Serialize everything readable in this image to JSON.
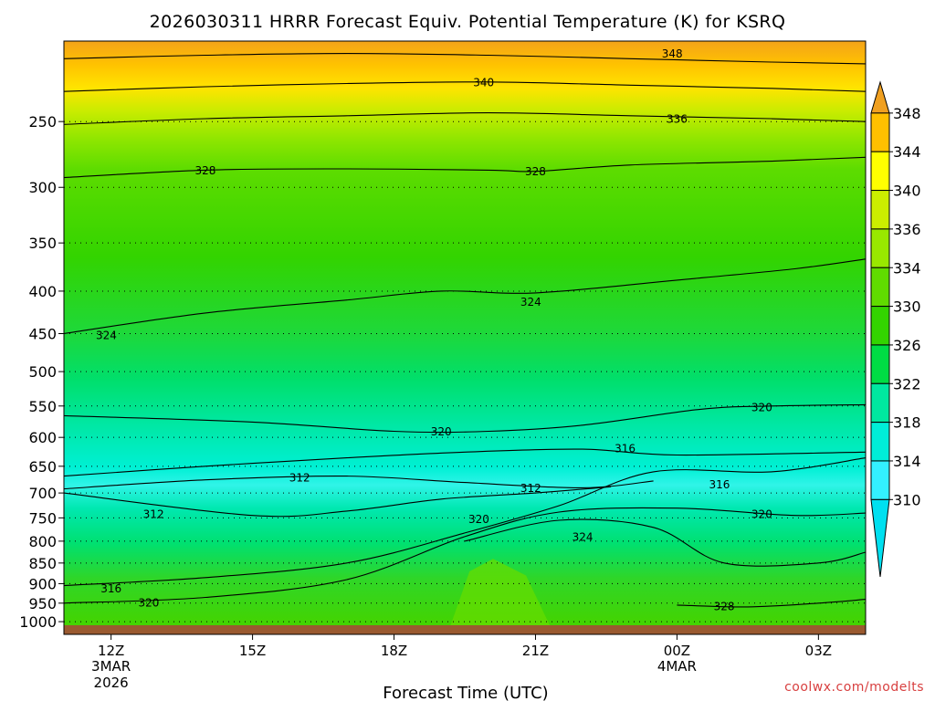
{
  "chart_data": {
    "type": "heatmap",
    "title": "2026030311 HRRR Forecast Equiv. Potential Temperature (K) for KSRQ",
    "xlabel": "Forecast Time (UTC)",
    "ylabel": "",
    "x_ticks": [
      {
        "label": "12Z",
        "sub": [
          "3MAR",
          "2026"
        ],
        "hour": 12
      },
      {
        "label": "15Z",
        "sub": [],
        "hour": 15
      },
      {
        "label": "18Z",
        "sub": [],
        "hour": 18
      },
      {
        "label": "21Z",
        "sub": [],
        "hour": 21
      },
      {
        "label": "00Z",
        "sub": [
          "4MAR"
        ],
        "hour": 24
      },
      {
        "label": "03Z",
        "sub": [],
        "hour": 27
      }
    ],
    "x_range": [
      11,
      28
    ],
    "y_ticks": [
      250,
      300,
      350,
      400,
      450,
      500,
      550,
      600,
      650,
      700,
      750,
      800,
      850,
      900,
      950,
      1000
    ],
    "y_range_hpa": [
      200,
      1010
    ],
    "y_scale": "log",
    "grid": "dotted horizontal lines at pressure ticks",
    "colorbar": {
      "ticks": [
        348,
        344,
        340,
        336,
        334,
        330,
        326,
        322,
        318,
        314,
        310
      ],
      "colors": [
        "#f0a020",
        "#ffc000",
        "#ffff00",
        "#ccee00",
        "#99e800",
        "#60dc00",
        "#33d400",
        "#00dd44",
        "#00e8a0",
        "#00eed8",
        "#33f0ff",
        "#00e0f0"
      ]
    },
    "series": [
      {
        "level": 312,
        "points": [
          [
            11.0,
            700
          ],
          [
            15.0,
            745
          ],
          [
            17.0,
            736
          ],
          [
            19.0,
            712
          ],
          [
            21.0,
            700
          ],
          [
            22.6,
            688
          ]
        ]
      },
      {
        "level": 312,
        "points": [
          [
            11.0,
            692
          ],
          [
            14.0,
            675
          ],
          [
            17.0,
            668
          ],
          [
            19.5,
            680
          ],
          [
            22.0,
            690
          ],
          [
            23.5,
            677
          ]
        ]
      },
      {
        "level": 316,
        "points": [
          [
            11.0,
            905
          ],
          [
            14.0,
            885
          ],
          [
            17.0,
            850
          ],
          [
            19.5,
            782
          ],
          [
            21.5,
            725
          ],
          [
            23.5,
            660
          ],
          [
            26.0,
            660
          ],
          [
            28.0,
            635
          ]
        ]
      },
      {
        "level": 316,
        "points": [
          [
            11.0,
            668
          ],
          [
            14.0,
            650
          ],
          [
            17.0,
            635
          ],
          [
            19.5,
            625
          ],
          [
            22.0,
            620
          ],
          [
            24.0,
            630
          ],
          [
            28.0,
            625
          ]
        ]
      },
      {
        "level": 320,
        "points": [
          [
            11.0,
            950
          ],
          [
            14.0,
            935
          ],
          [
            17.0,
            890
          ],
          [
            19.5,
            790
          ],
          [
            21.5,
            738
          ],
          [
            24.0,
            730
          ],
          [
            26.5,
            745
          ],
          [
            28.0,
            740
          ]
        ]
      },
      {
        "level": 320,
        "points": [
          [
            11.0,
            565
          ],
          [
            15.0,
            575
          ],
          [
            18.0,
            590
          ],
          [
            20.0,
            590
          ],
          [
            22.0,
            580
          ],
          [
            24.5,
            555
          ],
          [
            26.0,
            550
          ],
          [
            28.0,
            548
          ]
        ]
      },
      {
        "level": 324,
        "points": [
          [
            11.0,
            450
          ],
          [
            14.0,
            425
          ],
          [
            17.0,
            410
          ],
          [
            19.0,
            400
          ],
          [
            21.0,
            402
          ],
          [
            24.0,
            388
          ],
          [
            26.5,
            376
          ],
          [
            28.0,
            366
          ]
        ]
      },
      {
        "level": 324,
        "points": [
          [
            19.5,
            800
          ],
          [
            21.5,
            755
          ],
          [
            23.5,
            770
          ],
          [
            25.0,
            850
          ],
          [
            27.0,
            850
          ],
          [
            28.0,
            825
          ]
        ]
      },
      {
        "level": 328,
        "points": [
          [
            11.0,
            292
          ],
          [
            14.0,
            286
          ],
          [
            17.0,
            285
          ],
          [
            20.0,
            286
          ],
          [
            21.0,
            287
          ],
          [
            23.0,
            282
          ],
          [
            26.0,
            279
          ],
          [
            28.0,
            276
          ]
        ]
      },
      {
        "level": 328,
        "points": [
          [
            24.0,
            955
          ],
          [
            25.5,
            960
          ],
          [
            27.0,
            950
          ],
          [
            28.0,
            940
          ]
        ]
      },
      {
        "level": 336,
        "points": [
          [
            11.0,
            252
          ],
          [
            14.0,
            248
          ],
          [
            17.0,
            246
          ],
          [
            20.0,
            244
          ],
          [
            23.0,
            246
          ],
          [
            26.0,
            248
          ],
          [
            28.0,
            250
          ]
        ]
      },
      {
        "level": 340,
        "points": [
          [
            11.0,
            230
          ],
          [
            14.0,
            227
          ],
          [
            17.0,
            225
          ],
          [
            20.0,
            224
          ],
          [
            23.0,
            226
          ],
          [
            26.0,
            228
          ],
          [
            28.0,
            230
          ]
        ]
      },
      {
        "level": 348,
        "points": [
          [
            11.0,
            210
          ],
          [
            14.0,
            208
          ],
          [
            17.0,
            207
          ],
          [
            20.0,
            208
          ],
          [
            23.0,
            210
          ],
          [
            26.0,
            212
          ],
          [
            28.0,
            213
          ]
        ]
      }
    ],
    "contour_labels": [
      {
        "text": "348",
        "x": 23.9,
        "p": 207
      },
      {
        "text": "340",
        "x": 19.9,
        "p": 224
      },
      {
        "text": "336",
        "x": 24.0,
        "p": 248
      },
      {
        "text": "328",
        "x": 14.0,
        "p": 286
      },
      {
        "text": "328",
        "x": 21.0,
        "p": 287
      },
      {
        "text": "324",
        "x": 11.9,
        "p": 452
      },
      {
        "text": "324",
        "x": 20.9,
        "p": 412
      },
      {
        "text": "320",
        "x": 19.0,
        "p": 590
      },
      {
        "text": "320",
        "x": 25.8,
        "p": 552
      },
      {
        "text": "320",
        "x": 25.8,
        "p": 742
      },
      {
        "text": "320",
        "x": 19.8,
        "p": 752
      },
      {
        "text": "320",
        "x": 12.8,
        "p": 948
      },
      {
        "text": "316",
        "x": 22.9,
        "p": 618
      },
      {
        "text": "316",
        "x": 24.9,
        "p": 683
      },
      {
        "text": "316",
        "x": 12.0,
        "p": 912
      },
      {
        "text": "312",
        "x": 16.0,
        "p": 670
      },
      {
        "text": "312",
        "x": 20.9,
        "p": 690
      },
      {
        "text": "312",
        "x": 12.9,
        "p": 742
      },
      {
        "text": "324",
        "x": 22.0,
        "p": 790
      },
      {
        "text": "328",
        "x": 25.0,
        "p": 958
      }
    ]
  },
  "credit": "coolwx.com/modelts"
}
